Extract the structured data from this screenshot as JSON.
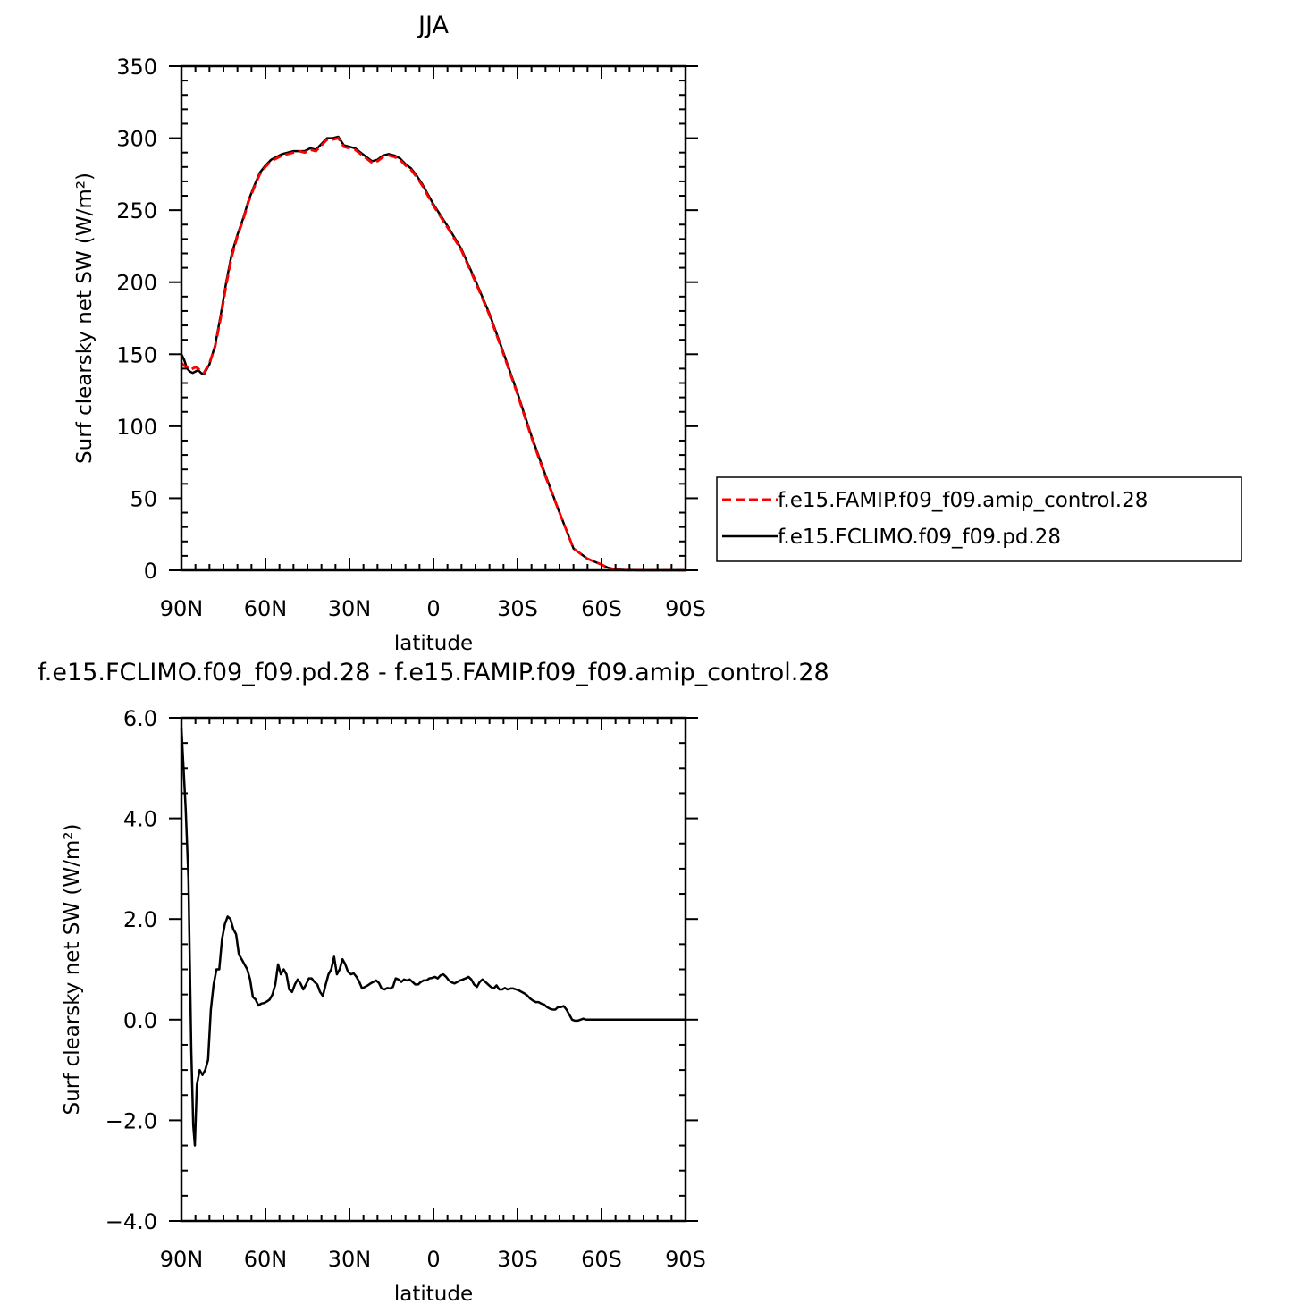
{
  "figure": {
    "top_title": "JJA",
    "bottom_title": "f.e15.FCLIMO.f09_f09.pd.28 - f.e15.FAMIP.f09_f09.amip_control.28"
  },
  "legend": {
    "entries": [
      {
        "label": "f.e15.FAMIP.f09_f09.amip_control.28",
        "color": "#ff0000",
        "style": "dashed"
      },
      {
        "label": "f.e15.FCLIMO.f09_f09.pd.28",
        "color": "#000000",
        "style": "solid"
      }
    ]
  },
  "chart_data": [
    {
      "type": "line",
      "title": "JJA",
      "xlabel": "latitude",
      "ylabel": "Surf clearsky net SW (W/m²)",
      "xlim": [
        90,
        -90
      ],
      "ylim": [
        0,
        350
      ],
      "x_ticks": [
        {
          "value": 90,
          "label": "90N"
        },
        {
          "value": 60,
          "label": "60N"
        },
        {
          "value": 30,
          "label": "30N"
        },
        {
          "value": 0,
          "label": "0"
        },
        {
          "value": -30,
          "label": "30S"
        },
        {
          "value": -60,
          "label": "60S"
        },
        {
          "value": -90,
          "label": "90S"
        }
      ],
      "y_ticks": [
        {
          "value": 0,
          "label": "0"
        },
        {
          "value": 50,
          "label": "50"
        },
        {
          "value": 100,
          "label": "100"
        },
        {
          "value": 150,
          "label": "150"
        },
        {
          "value": 200,
          "label": "200"
        },
        {
          "value": 250,
          "label": "250"
        },
        {
          "value": 300,
          "label": "300"
        },
        {
          "value": 350,
          "label": "350"
        }
      ],
      "legend_position": "right",
      "series": [
        {
          "name": "f.e15.FAMIP.f09_f09.amip_control.28",
          "color": "#ff0000",
          "style": "dashed",
          "x": [
            90,
            89,
            88,
            87,
            86,
            85,
            84,
            83,
            82,
            80,
            78,
            76,
            74,
            72,
            70,
            68,
            66,
            64,
            62,
            60,
            58,
            56,
            54,
            52,
            50,
            48,
            46,
            44,
            42,
            40,
            38,
            36,
            34,
            32,
            30,
            28,
            26,
            24,
            22,
            20,
            18,
            16,
            14,
            12,
            10,
            8,
            6,
            4,
            2,
            0,
            -5,
            -10,
            -15,
            -20,
            -25,
            -30,
            -35,
            -40,
            -45,
            -50,
            -55,
            -60,
            -62,
            -64,
            -66,
            -68,
            -70,
            -75,
            -80,
            -85,
            -90
          ],
          "y": [
            144,
            142,
            141,
            139,
            140,
            141,
            140,
            138,
            137,
            144,
            155,
            175,
            198,
            218,
            232,
            243,
            256,
            266,
            275,
            280,
            284,
            286,
            288,
            289,
            290,
            291,
            290,
            292,
            291,
            295,
            299,
            299,
            300,
            294,
            293,
            292,
            289,
            286,
            283,
            284,
            287,
            288,
            287,
            285,
            281,
            278,
            273,
            267,
            260,
            253,
            238,
            222,
            200,
            177,
            150,
            122,
            92,
            65,
            40,
            15,
            8,
            4,
            2,
            1,
            0.5,
            0.2,
            0.1,
            0,
            0,
            0,
            0
          ]
        },
        {
          "name": "f.e15.FCLIMO.f09_f09.pd.28",
          "color": "#000000",
          "style": "solid",
          "x": [
            90,
            89,
            88,
            87,
            86,
            85,
            84,
            83,
            82,
            80,
            78,
            76,
            74,
            72,
            70,
            68,
            66,
            64,
            62,
            60,
            58,
            56,
            54,
            52,
            50,
            48,
            46,
            44,
            42,
            40,
            38,
            36,
            34,
            32,
            30,
            28,
            26,
            24,
            22,
            20,
            18,
            16,
            14,
            12,
            10,
            8,
            6,
            4,
            2,
            0,
            -5,
            -10,
            -15,
            -20,
            -25,
            -30,
            -35,
            -40,
            -45,
            -50,
            -55,
            -60,
            -62,
            -64,
            -66,
            -68,
            -70,
            -75,
            -80,
            -85,
            -90
          ],
          "y": [
            150,
            146,
            140,
            138,
            137,
            138,
            139,
            137,
            136,
            143,
            156,
            177,
            200,
            220,
            233,
            244,
            257,
            267,
            276,
            281,
            285,
            287,
            289,
            290,
            291,
            291,
            291,
            293,
            292,
            296,
            300,
            300,
            301,
            295,
            294,
            293,
            290,
            287,
            284,
            285,
            288,
            289,
            288,
            286,
            282,
            279,
            274,
            268,
            261,
            254,
            239,
            223,
            201,
            178,
            151,
            123,
            93,
            66,
            40,
            15,
            8,
            4,
            2,
            1,
            0.5,
            0.2,
            0.1,
            0,
            0,
            0,
            0
          ]
        }
      ]
    },
    {
      "type": "line",
      "title": "f.e15.FCLIMO.f09_f09.pd.28 - f.e15.FAMIP.f09_f09.amip_control.28",
      "xlabel": "latitude",
      "ylabel": "Surf clearsky net SW (W/m²)",
      "xlim": [
        90,
        -90
      ],
      "ylim": [
        -4,
        6
      ],
      "x_ticks": [
        {
          "value": 90,
          "label": "90N"
        },
        {
          "value": 60,
          "label": "60N"
        },
        {
          "value": 30,
          "label": "30N"
        },
        {
          "value": 0,
          "label": "0"
        },
        {
          "value": -30,
          "label": "30S"
        },
        {
          "value": -60,
          "label": "60S"
        },
        {
          "value": -90,
          "label": "90S"
        }
      ],
      "y_ticks": [
        {
          "value": -4,
          "label": "−4.0"
        },
        {
          "value": -2,
          "label": "−2.0"
        },
        {
          "value": 0,
          "label": "0.0"
        },
        {
          "value": 2,
          "label": "2.0"
        },
        {
          "value": 4,
          "label": "4.0"
        },
        {
          "value": 6,
          "label": "6.0"
        }
      ],
      "series": [
        {
          "color": "#000000",
          "style": "solid",
          "x": [
            90,
            88.5,
            87.5,
            86.5,
            85.8,
            85.2,
            84.5,
            83.5,
            82.5,
            81.5,
            80.5,
            79.5,
            78.5,
            77.5,
            76.5,
            75.5,
            74.5,
            73.5,
            72.5,
            71.5,
            70.5,
            69.5,
            68.5,
            67.5,
            66.5,
            65.5,
            64.5,
            63.5,
            62.5,
            61.5,
            60.5,
            59.5,
            58.5,
            57.5,
            56.5,
            55.5,
            54.5,
            53.5,
            52.5,
            51.5,
            50.5,
            49.5,
            48.5,
            47.5,
            46.5,
            45.5,
            44.5,
            43.5,
            42.5,
            41.5,
            40.5,
            39.5,
            38.5,
            37.5,
            36.5,
            35.5,
            34.5,
            33.5,
            32.5,
            31.5,
            30.5,
            29.5,
            28.5,
            27.5,
            26.5,
            25.5,
            24.5,
            23.5,
            22.5,
            21.5,
            20.5,
            19.5,
            18.5,
            17.5,
            16.5,
            15.5,
            14.5,
            13.5,
            12.5,
            11.5,
            10.5,
            9.5,
            8.5,
            7.5,
            6.5,
            5.5,
            4.5,
            3.5,
            2.5,
            1.5,
            0.5,
            -0.5,
            -1.5,
            -2.5,
            -3.5,
            -4.5,
            -5.5,
            -6.5,
            -7.5,
            -8.5,
            -9.5,
            -10.5,
            -11.5,
            -12.5,
            -13.5,
            -14.5,
            -15.5,
            -16.5,
            -17.5,
            -18.5,
            -19.5,
            -20.5,
            -21.5,
            -22.5,
            -23.5,
            -24.5,
            -25.5,
            -26.5,
            -27.5,
            -28.5,
            -29.5,
            -30.5,
            -31.5,
            -32.5,
            -33.5,
            -34.5,
            -35.5,
            -36.5,
            -37.5,
            -38.5,
            -39.5,
            -40.5,
            -41.5,
            -42.5,
            -43.5,
            -44.5,
            -45.5,
            -46.5,
            -47.5,
            -48.5,
            -49.5,
            -50.5,
            -51.5,
            -52.5,
            -53.5,
            -54.5,
            -55.5,
            -56.5,
            -57.5,
            -58.5,
            -59.5,
            -60.5,
            -61.5,
            -62.5,
            -63.5,
            -64.5,
            -65.5,
            -66.5,
            -67.5,
            -68.5,
            -70,
            -72,
            -75,
            -80,
            -85,
            -90
          ],
          "y": [
            5.8,
            4.2,
            2.8,
            -0.6,
            -2.1,
            -2.5,
            -1.3,
            -1.0,
            -1.1,
            -1.0,
            -0.8,
            0.2,
            0.7,
            1.0,
            1.0,
            1.6,
            1.9,
            2.05,
            2.0,
            1.8,
            1.7,
            1.3,
            1.2,
            1.1,
            1.0,
            0.8,
            0.45,
            0.4,
            0.28,
            0.32,
            0.33,
            0.36,
            0.4,
            0.5,
            0.7,
            1.1,
            0.9,
            1.0,
            0.9,
            0.6,
            0.55,
            0.7,
            0.8,
            0.72,
            0.6,
            0.7,
            0.82,
            0.82,
            0.75,
            0.7,
            0.55,
            0.47,
            0.7,
            0.9,
            1.0,
            1.25,
            0.9,
            1.0,
            1.2,
            1.1,
            0.95,
            0.9,
            0.92,
            0.85,
            0.75,
            0.62,
            0.65,
            0.68,
            0.72,
            0.75,
            0.78,
            0.73,
            0.62,
            0.6,
            0.63,
            0.62,
            0.65,
            0.82,
            0.8,
            0.75,
            0.8,
            0.78,
            0.8,
            0.75,
            0.7,
            0.7,
            0.75,
            0.78,
            0.78,
            0.82,
            0.83,
            0.85,
            0.82,
            0.88,
            0.9,
            0.85,
            0.78,
            0.74,
            0.72,
            0.75,
            0.78,
            0.8,
            0.82,
            0.85,
            0.8,
            0.7,
            0.65,
            0.75,
            0.8,
            0.75,
            0.7,
            0.65,
            0.62,
            0.68,
            0.6,
            0.6,
            0.63,
            0.6,
            0.62,
            0.62,
            0.6,
            0.58,
            0.55,
            0.52,
            0.48,
            0.42,
            0.38,
            0.35,
            0.35,
            0.32,
            0.3,
            0.25,
            0.22,
            0.2,
            0.2,
            0.25,
            0.25,
            0.27,
            0.2,
            0.1,
            0.0,
            -0.02,
            -0.02,
            0.0,
            0.02,
            0.0,
            0.0,
            0.0,
            0.0,
            0.0,
            0.0,
            0.0,
            0.0,
            0.0,
            0.0,
            0.0,
            0.0,
            0.0,
            0.0,
            0.0,
            0.0,
            0.0,
            0.0,
            0.0,
            0.0,
            0.0
          ]
        }
      ]
    }
  ]
}
